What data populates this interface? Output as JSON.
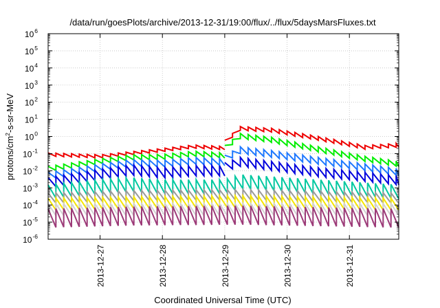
{
  "chart_data": {
    "type": "line",
    "title": "/data/run/goesPlots/archive/2013-12-31/19:00/flux/../flux/5daysMarsFluxes.txt",
    "xlabel": "Coordinated Universal Time (UTC)",
    "ylabel": "protons/cm²-s-sr-MeV",
    "ylabel_parts": {
      "prefix": "protons/cm",
      "superscript": "2",
      "suffix": "-s-sr-MeV"
    },
    "yscale": "log",
    "ylim": [
      1e-06,
      1000000.0
    ],
    "y_ticks": [
      {
        "value": 1e-06,
        "base": "10",
        "exp": "-6"
      },
      {
        "value": 1e-05,
        "base": "10",
        "exp": "-5"
      },
      {
        "value": 0.0001,
        "base": "10",
        "exp": "-4"
      },
      {
        "value": 0.001,
        "base": "10",
        "exp": "-3"
      },
      {
        "value": 0.01,
        "base": "10",
        "exp": "-2"
      },
      {
        "value": 0.1,
        "base": "10",
        "exp": "-1"
      },
      {
        "value": 1,
        "base": "10",
        "exp": "0"
      },
      {
        "value": 10,
        "base": "10",
        "exp": "1"
      },
      {
        "value": 100,
        "base": "10",
        "exp": "2"
      },
      {
        "value": 1000,
        "base": "10",
        "exp": "3"
      },
      {
        "value": 10000,
        "base": "10",
        "exp": "4"
      },
      {
        "value": 100000,
        "base": "10",
        "exp": "5"
      },
      {
        "value": 1000000,
        "base": "10",
        "exp": "6"
      }
    ],
    "xlim": [
      "2013-12-26T04:00",
      "2013-12-31T19:00"
    ],
    "x_ticks": [
      "2013-12-27",
      "2013-12-28",
      "2013-12-29",
      "2013-12-30",
      "2013-12-31"
    ],
    "grid": true,
    "legend": "none",
    "sawtooth_period_hours": 3,
    "series": [
      {
        "color": "#ee0000",
        "segments": [
          {
            "start": "2013-12-26T04:00",
            "end": "2013-12-29T00:00",
            "peak": [
              [
                "2013-12-26T04:00",
                0.11
              ],
              [
                "2013-12-27T00:00",
                0.085
              ],
              [
                "2013-12-27T12:00",
                0.13
              ],
              [
                "2013-12-28T00:00",
                0.2
              ],
              [
                "2013-12-28T12:00",
                0.32
              ],
              [
                "2013-12-29T00:00",
                0.26
              ]
            ],
            "ratio": 0.65
          },
          {
            "start": "2013-12-29T00:00",
            "end": "2013-12-31T19:00",
            "peak": [
              [
                "2013-12-29T00:00",
                0.6
              ],
              [
                "2013-12-29T06:00",
                3.8
              ],
              [
                "2013-12-29T18:00",
                3.0
              ],
              [
                "2013-12-30T12:00",
                1.0
              ],
              [
                "2013-12-31T06:00",
                0.3
              ],
              [
                "2013-12-31T19:00",
                0.4
              ]
            ],
            "ratio": 0.6
          }
        ]
      },
      {
        "color": "#00ee00",
        "segments": [
          {
            "start": "2013-12-26T04:00",
            "end": "2013-12-29T00:00",
            "peak": [
              [
                "2013-12-26T04:00",
                0.018
              ],
              [
                "2013-12-27T00:00",
                0.05
              ],
              [
                "2013-12-27T12:00",
                0.085
              ],
              [
                "2013-12-28T00:00",
                0.09
              ],
              [
                "2013-12-28T12:00",
                0.14
              ],
              [
                "2013-12-29T00:00",
                0.11
              ]
            ],
            "ratio": 0.5
          },
          {
            "start": "2013-12-29T00:00",
            "end": "2013-12-31T19:00",
            "peak": [
              [
                "2013-12-29T00:00",
                0.3
              ],
              [
                "2013-12-29T06:00",
                1.5
              ],
              [
                "2013-12-29T18:00",
                0.9
              ],
              [
                "2013-12-30T12:00",
                0.25
              ],
              [
                "2013-12-31T06:00",
                0.07
              ],
              [
                "2013-12-31T19:00",
                0.035
              ]
            ],
            "ratio": 0.5
          }
        ]
      },
      {
        "color": "#1e78ff",
        "segments": [
          {
            "start": "2013-12-26T04:00",
            "end": "2013-12-29T00:00",
            "peak": [
              [
                "2013-12-26T04:00",
                0.008
              ],
              [
                "2013-12-27T00:00",
                0.025
              ],
              [
                "2013-12-27T12:00",
                0.045
              ],
              [
                "2013-12-28T00:00",
                0.04
              ],
              [
                "2013-12-28T12:00",
                0.06
              ],
              [
                "2013-12-29T00:00",
                0.05
              ]
            ],
            "ratio": 0.4
          },
          {
            "start": "2013-12-29T00:00",
            "end": "2013-12-31T19:00",
            "peak": [
              [
                "2013-12-29T00:00",
                0.08
              ],
              [
                "2013-12-29T06:00",
                0.25
              ],
              [
                "2013-12-29T18:00",
                0.15
              ],
              [
                "2013-12-30T12:00",
                0.06
              ],
              [
                "2013-12-31T06:00",
                0.025
              ],
              [
                "2013-12-31T19:00",
                0.013
              ]
            ],
            "ratio": 0.4
          }
        ]
      },
      {
        "color": "#0000dd",
        "segments": [
          {
            "start": "2013-12-26T04:00",
            "end": "2013-12-29T00:00",
            "peak": [
              [
                "2013-12-26T04:00",
                0.004
              ],
              [
                "2013-12-27T00:00",
                0.012
              ],
              [
                "2013-12-27T12:00",
                0.022
              ],
              [
                "2013-12-28T00:00",
                0.015
              ],
              [
                "2013-12-28T12:00",
                0.02
              ],
              [
                "2013-12-29T00:00",
                0.02
              ]
            ],
            "ratio": 0.25
          },
          {
            "start": "2013-12-29T00:00",
            "end": "2013-12-31T19:00",
            "peak": [
              [
                "2013-12-29T00:00",
                0.03
              ],
              [
                "2013-12-29T06:00",
                0.06
              ],
              [
                "2013-12-29T18:00",
                0.035
              ],
              [
                "2013-12-30T12:00",
                0.015
              ],
              [
                "2013-12-31T06:00",
                0.008
              ],
              [
                "2013-12-31T19:00",
                0.005
              ]
            ],
            "ratio": 0.3
          }
        ]
      },
      {
        "color": "#00c8a0",
        "segments": [
          {
            "start": "2013-12-26T04:00",
            "end": "2013-12-31T19:00",
            "peak": [
              [
                "2013-12-26T04:00",
                0.0015
              ],
              [
                "2013-12-27T00:00",
                0.003
              ],
              [
                "2013-12-27T12:00",
                0.004
              ],
              [
                "2013-12-28T00:00",
                0.003
              ],
              [
                "2013-12-29T00:00",
                0.003
              ],
              [
                "2013-12-29T06:00",
                0.006
              ],
              [
                "2013-12-30T12:00",
                0.003
              ],
              [
                "2013-12-31T19:00",
                0.0015
              ]
            ],
            "ratio": 0.15
          }
        ]
      },
      {
        "color": "#9a9a9a",
        "segments": [
          {
            "start": "2013-12-26T04:00",
            "end": "2013-12-31T19:00",
            "peak": [
              [
                "2013-12-26T04:00",
                0.0005
              ],
              [
                "2013-12-27T12:00",
                0.0007
              ],
              [
                "2013-12-29T06:00",
                0.0008
              ],
              [
                "2013-12-31T19:00",
                0.0005
              ]
            ],
            "ratio": 0.25
          }
        ]
      },
      {
        "color": "#f5e600",
        "segments": [
          {
            "start": "2013-12-26T04:00",
            "end": "2013-12-31T19:00",
            "peak": [
              [
                "2013-12-26T04:00",
                0.00025
              ],
              [
                "2013-12-27T12:00",
                0.0003
              ],
              [
                "2013-12-29T06:00",
                0.00035
              ],
              [
                "2013-12-31T19:00",
                0.00025
              ]
            ],
            "ratio": 0.2
          }
        ]
      },
      {
        "color": "#d2d2d2",
        "segments": [
          {
            "start": "2013-12-26T04:00",
            "end": "2013-12-31T19:00",
            "peak": [
              [
                "2013-12-26T04:00",
                0.00012
              ],
              [
                "2013-12-31T19:00",
                0.00012
              ]
            ],
            "ratio": 0.2
          }
        ]
      },
      {
        "color": "#9c3a78",
        "segments": [
          {
            "start": "2013-12-26T04:00",
            "end": "2013-12-31T19:00",
            "peak": [
              [
                "2013-12-26T04:00",
                6e-05
              ],
              [
                "2013-12-27T12:00",
                8e-05
              ],
              [
                "2013-12-29T06:00",
                9e-05
              ],
              [
                "2013-12-31T19:00",
                6e-05
              ]
            ],
            "ratio": 0.08
          }
        ]
      }
    ]
  }
}
